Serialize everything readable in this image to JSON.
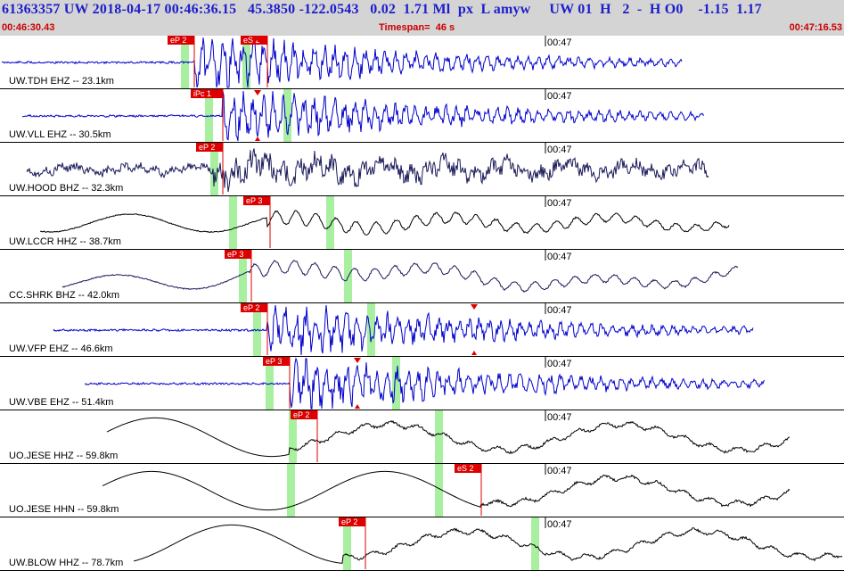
{
  "header": {
    "title": "61363357 UW 2018-04-17 00:46:36.15   45.3850 -122.0543   0.02  1.71 Ml  px  L amyw     UW 01  H   2  -  H O0    -1.15  1.17",
    "start_time": "00:46:30.43",
    "timespan_label": "Timespan=",
    "timespan_value": "46 s",
    "end_time": "00:47:16.53"
  },
  "time_tick_label": "00:47",
  "colors": {
    "header_bg": "#d4d4d4",
    "title_blue": "#1d1dcc",
    "time_red": "#cc0000",
    "pick_red": "#dd0000",
    "window_green": "#a8f0a0",
    "trace_blue": "#0000cc",
    "trace_navy": "#1a1a5a",
    "trace_black": "#000000"
  },
  "channels": [
    {
      "label": "UW.TDH EHZ -- 23.1km",
      "color": "#0000cc",
      "kind": "noise-burst",
      "picks": [
        {
          "text": "eP 2"
        },
        {
          "text": "eS 2"
        }
      ],
      "amp_marker": "top"
    },
    {
      "label": "UW.VLL EHZ -- 30.5km",
      "color": "#0000cc",
      "kind": "noise-burst",
      "picks": [
        {
          "text": "iPc 1"
        }
      ],
      "amp_marker": "both"
    },
    {
      "label": "UW.HOOD BHZ -- 32.3km",
      "color": "#1a1a5a",
      "kind": "wavy-noise",
      "picks": [
        {
          "text": "eP 2"
        }
      ],
      "amp_marker": "none"
    },
    {
      "label": "UW.LCCR HHZ -- 38.7km",
      "color": "#000000",
      "kind": "long-period",
      "picks": [
        {
          "text": "eP 3"
        }
      ],
      "amp_marker": "none"
    },
    {
      "label": "CC.SHRK BHZ -- 42.0km",
      "color": "#1a1a5a",
      "kind": "long-period-thin",
      "picks": [
        {
          "text": "eP 3"
        }
      ],
      "amp_marker": "none"
    },
    {
      "label": "UW.VFP EHZ -- 46.6km",
      "color": "#0000cc",
      "kind": "noise-burst",
      "picks": [
        {
          "text": "eP 2"
        }
      ],
      "amp_marker": "both"
    },
    {
      "label": "UW.VBE EHZ -- 51.4km",
      "color": "#0000cc",
      "kind": "noise-burst",
      "picks": [
        {
          "text": "eP 3"
        }
      ],
      "amp_marker": "both"
    },
    {
      "label": "UO.JESE HHZ -- 59.8km",
      "color": "#000000",
      "kind": "slow",
      "picks": [
        {
          "text": "eP 2"
        }
      ],
      "amp_marker": "none"
    },
    {
      "label": "UO.JESE HHN -- 59.8km",
      "color": "#000000",
      "kind": "slow",
      "picks": [
        {
          "text": "eS 2"
        }
      ],
      "amp_marker": "none"
    },
    {
      "label": "UW.BLOW HHZ -- 78.7km",
      "color": "#000000",
      "kind": "slow",
      "picks": [
        {
          "text": "eP 2"
        }
      ],
      "amp_marker": "none"
    }
  ]
}
